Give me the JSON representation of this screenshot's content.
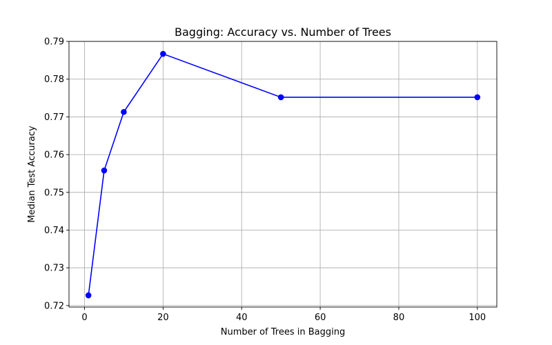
{
  "chart_data": {
    "type": "line",
    "title": "Bagging: Accuracy vs. Number of Trees",
    "xlabel": "Number of Trees in Bagging",
    "ylabel": "Median Test Accuracy",
    "x": [
      1,
      5,
      10,
      20,
      50,
      100
    ],
    "series": [
      {
        "values": [
          0.7227,
          0.7558,
          0.7713,
          0.7867,
          0.7752,
          0.7752
        ],
        "color": "#0000ff",
        "marker": "circle"
      }
    ],
    "xlim": [
      -3.95,
      104.95
    ],
    "ylim": [
      0.7196,
      0.79
    ],
    "xticks": [
      0,
      20,
      40,
      60,
      80,
      100
    ],
    "xtick_labels": [
      "0",
      "20",
      "40",
      "60",
      "80",
      "100"
    ],
    "yticks": [
      0.72,
      0.73,
      0.74,
      0.75,
      0.76,
      0.77,
      0.78,
      0.79
    ],
    "ytick_labels": [
      "0.72",
      "0.73",
      "0.74",
      "0.75",
      "0.76",
      "0.77",
      "0.78",
      "0.79"
    ],
    "grid": true,
    "legend": false
  }
}
